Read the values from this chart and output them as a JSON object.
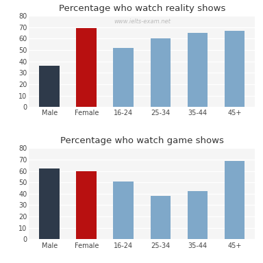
{
  "reality_title": "Percentage who watch reality shows",
  "game_title": "Percentage who watch game shows",
  "categories": [
    "Male",
    "Female",
    "16-24",
    "25-34",
    "35-44",
    "45+"
  ],
  "reality_values": [
    36,
    69,
    52,
    60,
    65,
    67
  ],
  "game_values": [
    62,
    60,
    51,
    38,
    42,
    69
  ],
  "bar_colors": [
    "#2e3a4a",
    "#b81010",
    "#7fa8c9",
    "#7fa8c9",
    "#7fa8c9",
    "#7fa8c9"
  ],
  "ylim": [
    0,
    80
  ],
  "yticks": [
    0,
    10,
    20,
    30,
    40,
    50,
    60,
    70,
    80
  ],
  "watermark": "www.ielts-exam.net",
  "bg_color": "#ffffff",
  "plot_bg_color": "#f5f5f5",
  "grid_color": "#ffffff",
  "title_fontsize": 9.5,
  "tick_fontsize": 7,
  "watermark_fontsize": 6,
  "bar_width": 0.55
}
